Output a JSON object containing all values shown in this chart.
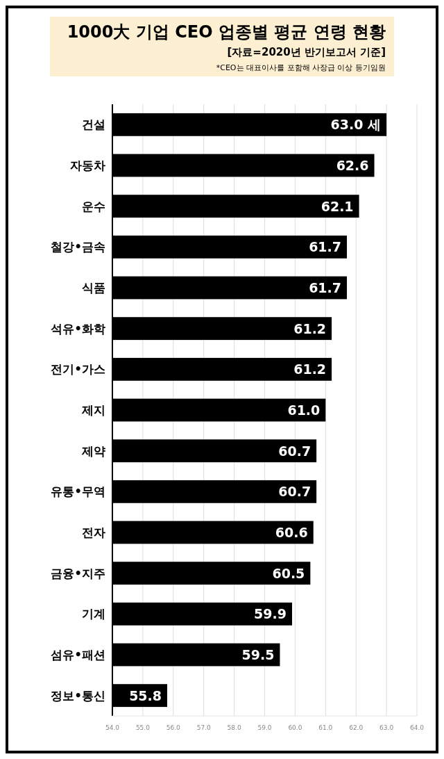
{
  "chart_data": {
    "type": "bar",
    "orientation": "horizontal",
    "title": "1000大 기업 CEO 업종별 평균 연령 현황",
    "subtitle": "[자료=2020년 반기보고서 기준]",
    "annotations": [
      "*CEO는 대표이사를 포함해 사장급 이상 등기임원"
    ],
    "categories": [
      "건설",
      "자동차",
      "운수",
      "철강•금속",
      "식품",
      "석유•화학",
      "전기•가스",
      "제지",
      "제약",
      "유통•무역",
      "전자",
      "금융•지주",
      "기계",
      "섬유•패션",
      "정보•통신"
    ],
    "values": [
      63.0,
      62.6,
      62.1,
      61.7,
      61.7,
      61.2,
      61.2,
      61.0,
      60.7,
      60.7,
      60.6,
      60.5,
      59.9,
      59.5,
      55.8
    ],
    "value_labels": [
      "63.0 세",
      "62.6",
      "62.1",
      "61.7",
      "61.7",
      "61.2",
      "61.2",
      "61.0",
      "60.7",
      "60.7",
      "60.6",
      "60.5",
      "59.9",
      "59.5",
      "55.8"
    ],
    "color": "#000000",
    "xlim": [
      54,
      64
    ],
    "xticks": [
      {
        "value": 54,
        "label": "54.0"
      },
      {
        "value": 55,
        "label": "55.0"
      },
      {
        "value": 56,
        "label": "56.0"
      },
      {
        "value": 57,
        "label": "57.0"
      },
      {
        "value": 58,
        "label": "58.0"
      },
      {
        "value": 59,
        "label": "59.0"
      },
      {
        "value": 60,
        "label": "60.0"
      },
      {
        "value": 61,
        "label": "61.0"
      },
      {
        "value": 62,
        "label": "62.0"
      },
      {
        "value": 63,
        "label": "63.0"
      },
      {
        "value": 64,
        "label": "64.0"
      }
    ],
    "grid": "x"
  }
}
